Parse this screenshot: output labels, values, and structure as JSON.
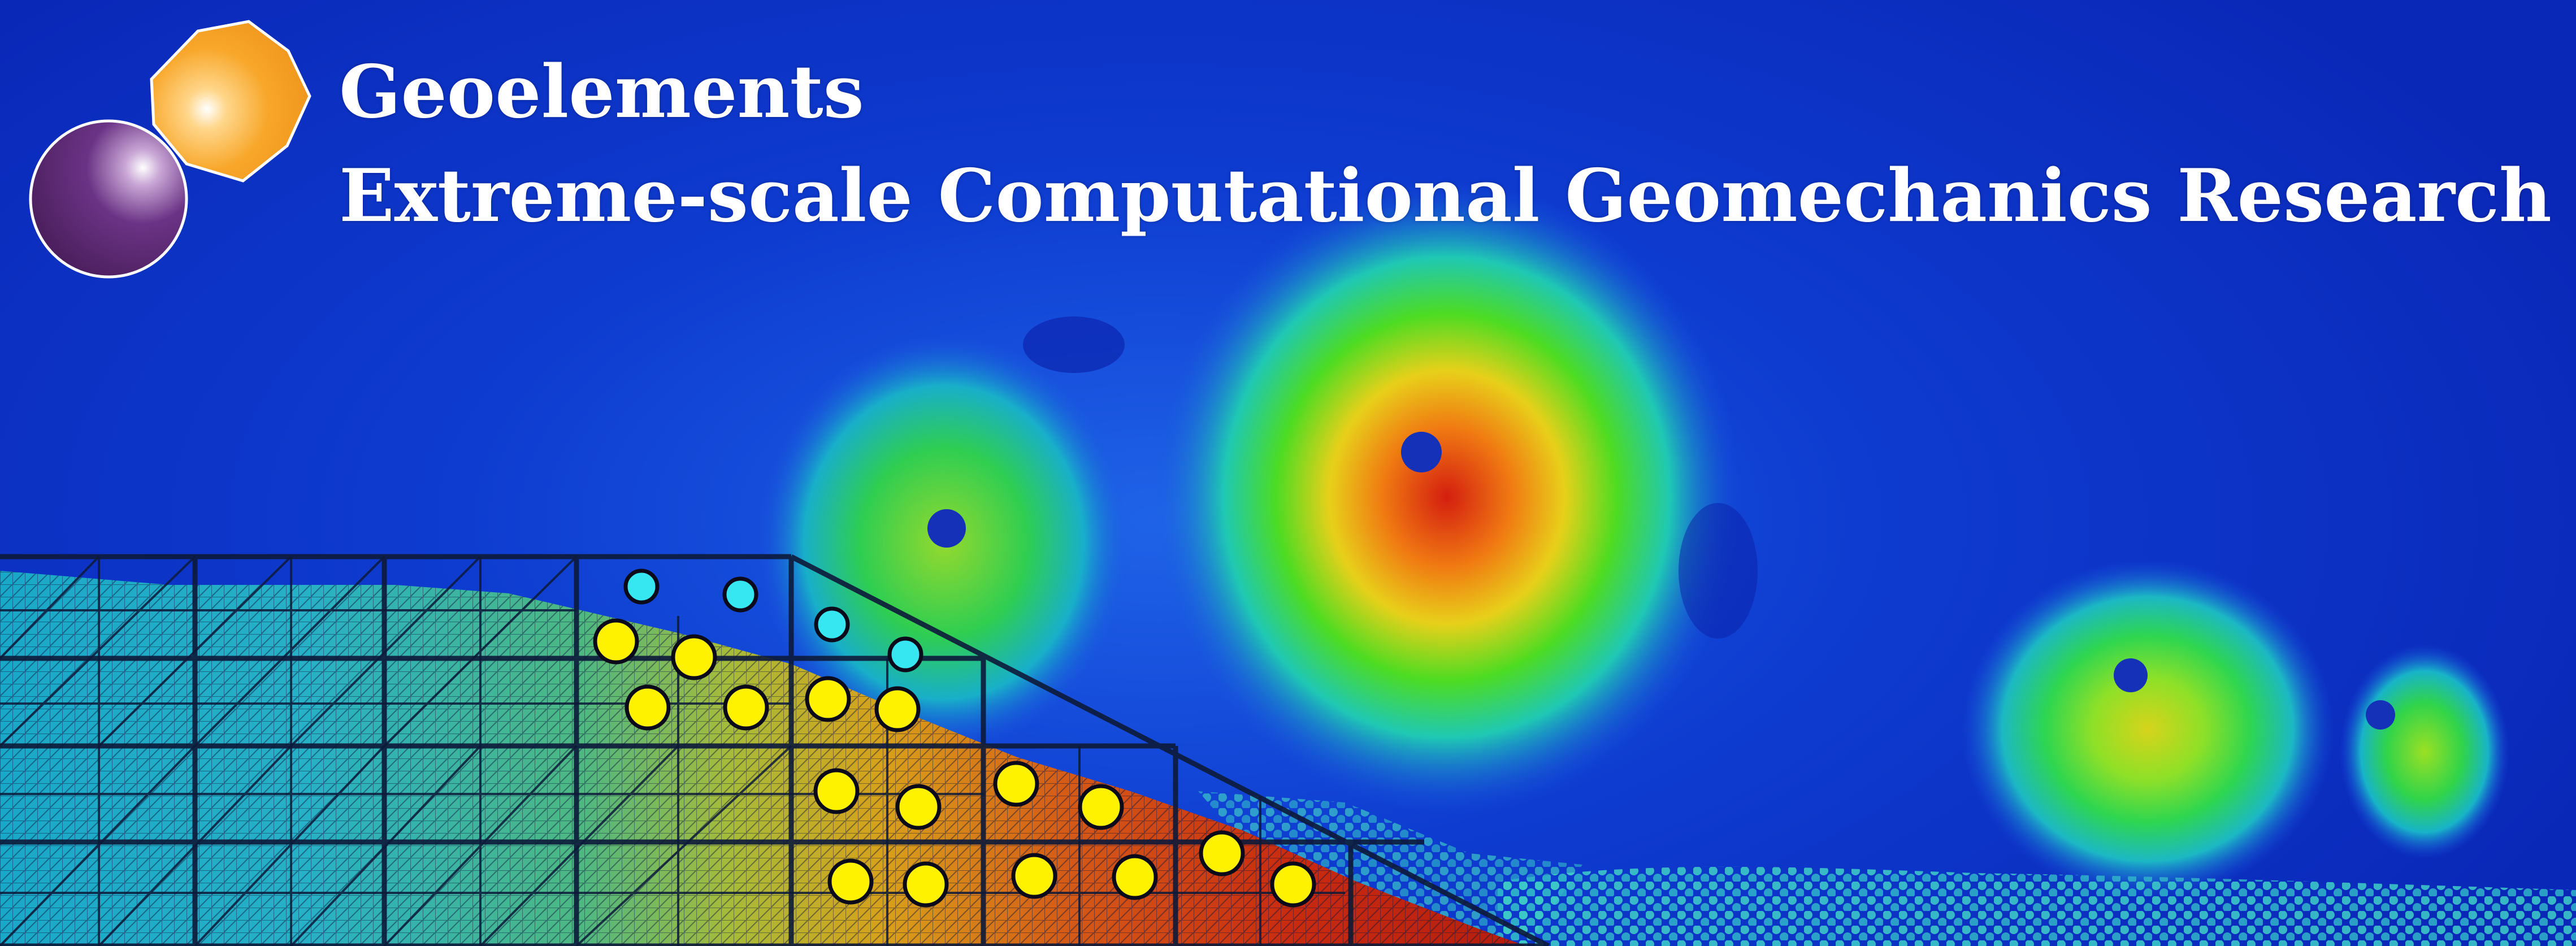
{
  "header": {
    "title": "Geoelements",
    "subtitle": "Extreme-scale Computational Geomechanics Research"
  },
  "logo": {
    "shapes": [
      "orange-polygon-particle",
      "purple-sphere-particle"
    ],
    "colors": {
      "polygon": "#f7a623",
      "sphere": "#5a2a6e"
    }
  },
  "colors": {
    "background": "#0a2fc4",
    "text": "#ffffff",
    "mpm_particle_cyan": "#36e6f0",
    "mpm_particle_yellow": "#fff200"
  }
}
